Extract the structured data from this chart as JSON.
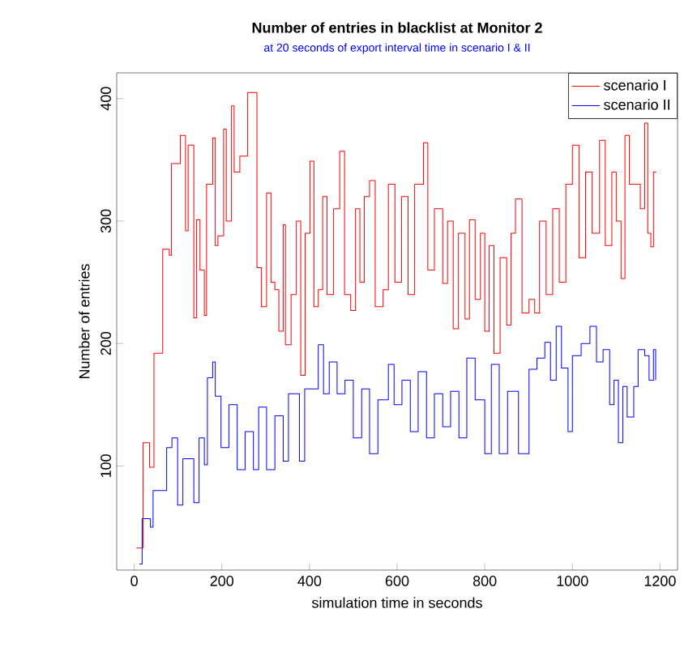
{
  "chart_data": {
    "type": "step",
    "title": "Number of entries in blacklist at Monitor 2",
    "subtitle": "at 20 seconds of export interval time in scenario I & II",
    "xlabel": "simulation time in seconds",
    "ylabel": "Number of entries",
    "xlim": [
      -40,
      1240
    ],
    "ylim": [
      15,
      421
    ],
    "xticks": [
      0,
      200,
      400,
      600,
      800,
      1000,
      1200
    ],
    "yticks": [
      100,
      200,
      300,
      400
    ],
    "legend": "top right",
    "series": [
      {
        "name": "scenario I",
        "color": "#ff0000",
        "x": [
          5,
          20,
          35,
          45,
          60,
          65,
          80,
          85,
          99,
          105,
          117,
          123,
          136,
          142,
          150,
          160,
          165,
          179,
          185,
          191,
          204,
          210,
          222,
          228,
          241,
          259,
          274,
          280,
          290,
          302,
          312,
          321,
          330,
          340,
          345,
          358,
          370,
          380,
          390,
          401,
          410,
          420,
          430,
          440,
          455,
          469,
          480,
          494,
          505,
          515,
          525,
          537,
          550,
          568,
          580,
          595,
          610,
          625,
          640,
          660,
          670,
          685,
          704,
          715,
          728,
          740,
          755,
          765,
          778,
          790,
          800,
          810,
          821,
          835,
          850,
          860,
          870,
          885,
          901,
          914,
          925,
          940,
          955,
          970,
          985,
          1000,
          1015,
          1030,
          1045,
          1062,
          1075,
          1090,
          1100,
          1111,
          1120,
          1130,
          1142,
          1155,
          1165,
          1172,
          1179,
          1185,
          1191
        ],
        "values": [
          33,
          119,
          99,
          192,
          192,
          277,
          272,
          347,
          347,
          370,
          292,
          362,
          221,
          301,
          260,
          223,
          330,
          368,
          280,
          288,
          375,
          300,
          394,
          340,
          353,
          405,
          405,
          262,
          230,
          323,
          250,
          244,
          210,
          297,
          199,
          240,
          300,
          174,
          290,
          349,
          230,
          244,
          320,
          240,
          310,
          357,
          240,
          227,
          310,
          250,
          320,
          333,
          230,
          244,
          330,
          250,
          320,
          240,
          330,
          364,
          260,
          310,
          249,
          300,
          212,
          290,
          220,
          301,
          236,
          290,
          210,
          280,
          192,
          270,
          215,
          290,
          318,
          225,
          236,
          225,
          300,
          240,
          310,
          250,
          330,
          362,
          270,
          340,
          290,
          366,
          280,
          340,
          300,
          253,
          370,
          330,
          null,
          310,
          380,
          290,
          279,
          340,
          340
        ]
      },
      {
        "name": "scenario II",
        "color": "#0000ff",
        "x": [
          12,
          18,
          37,
          43,
          62,
          74,
          86,
          99,
          111,
          136,
          148,
          160,
          167,
          179,
          185,
          198,
          216,
          235,
          253,
          272,
          284,
          302,
          321,
          340,
          352,
          377,
          389,
          407,
          420,
          432,
          445,
          463,
          481,
          500,
          519,
          537,
          556,
          580,
          593,
          611,
          630,
          648,
          667,
          685,
          704,
          722,
          741,
          759,
          778,
          800,
          815,
          833,
          852,
          877,
          901,
          919,
          937,
          950,
          963,
          975,
          990,
          1000,
          1020,
          1040,
          1055,
          1070,
          1085,
          1095,
          1105,
          1115,
          1125,
          1140,
          1150,
          1165,
          1175,
          1185,
          1190
        ],
        "values": [
          20,
          57,
          50,
          80,
          80,
          115,
          123,
          68,
          106,
          70,
          123,
          101,
          172,
          185,
          157,
          115,
          150,
          97,
          128,
          97,
          148,
          97,
          141,
          104,
          159,
          104,
          163,
          163,
          199,
          159,
          185,
          159,
          170,
          123,
          163,
          110,
          154,
          183,
          150,
          170,
          128,
          177,
          123,
          159,
          132,
          161,
          123,
          188,
          154,
          110,
          183,
          110,
          161,
          110,
          179,
          188,
          201,
          170,
          214,
          180,
          128,
          190,
          200,
          214,
          185,
          195,
          150,
          170,
          119,
          165,
          140,
          165,
          195,
          190,
          170,
          195,
          170
        ]
      }
    ]
  }
}
